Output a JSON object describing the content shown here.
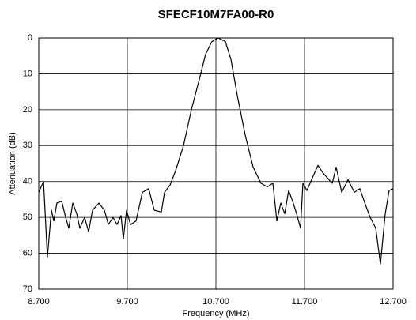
{
  "chart_data": {
    "type": "line",
    "title": "SFECF10M7FA00-R0",
    "x_label": "Frequency (MHz)",
    "y_label": "Attenuation (dB)",
    "x": [
      8.7,
      8.754,
      8.798,
      8.843,
      8.87,
      8.905,
      8.959,
      9.004,
      9.039,
      9.084,
      9.129,
      9.164,
      9.218,
      9.263,
      9.307,
      9.379,
      9.441,
      9.486,
      9.539,
      9.584,
      9.629,
      9.655,
      9.691,
      9.736,
      9.798,
      9.87,
      9.941,
      10.004,
      10.084,
      10.12,
      10.182,
      10.245,
      10.334,
      10.423,
      10.513,
      10.584,
      10.655,
      10.727,
      10.807,
      10.87,
      10.941,
      11.03,
      11.12,
      11.209,
      11.28,
      11.343,
      11.388,
      11.432,
      11.477,
      11.521,
      11.566,
      11.611,
      11.655,
      11.682,
      11.727,
      11.789,
      11.852,
      11.905,
      11.959,
      12.013,
      12.057,
      12.12,
      12.191,
      12.263,
      12.325,
      12.388,
      12.441,
      12.504,
      12.557,
      12.611,
      12.655,
      12.7
    ],
    "series": [
      {
        "color": "#000000",
        "values": [
          43,
          40,
          61,
          48,
          51,
          46,
          45.5,
          50,
          53,
          46,
          49,
          53,
          50,
          54,
          48,
          46,
          48,
          52,
          50,
          52,
          49.5,
          56,
          48,
          52,
          51,
          43,
          42,
          48,
          48.5,
          43,
          41,
          37,
          30,
          20,
          11.5,
          4.5,
          1,
          0,
          1,
          6,
          16,
          27,
          36,
          40.5,
          41.5,
          40.5,
          51,
          46,
          49,
          42.5,
          45.5,
          49,
          53,
          40.5,
          42.5,
          39,
          35.5,
          37.5,
          39,
          40.5,
          36,
          43,
          39.5,
          43,
          42,
          46.5,
          50,
          53,
          63,
          49,
          42.5,
          42
        ]
      }
    ],
    "xlim": [
      8.7,
      12.7
    ],
    "xticks": [
      {
        "value": 8.7,
        "label": "8.700"
      },
      {
        "value": 9.7,
        "label": "9.700"
      },
      {
        "value": 10.7,
        "label": "10.700"
      },
      {
        "value": 11.7,
        "label": "11.700"
      },
      {
        "value": 12.7,
        "label": "12.700"
      }
    ],
    "ylim": [
      70,
      0
    ],
    "yticks": [
      0,
      10,
      20,
      30,
      40,
      50,
      60,
      70
    ],
    "grid": true
  }
}
